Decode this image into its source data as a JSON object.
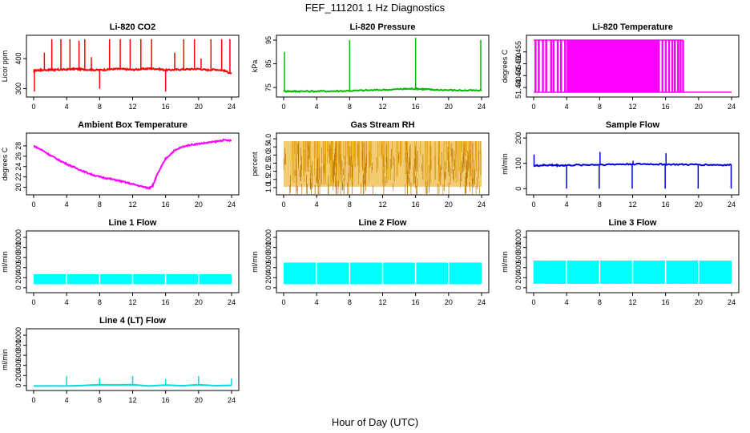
{
  "figure": {
    "title": "FEF_111201  1 Hz Diagnostics",
    "xlabel": "Hour of Day (UTC)"
  },
  "chart_data": [
    {
      "type": "line",
      "title": "Li-820 CO2",
      "ylabel": "Licor ppm",
      "color": "#ff0000",
      "xlim": [
        0,
        24
      ],
      "ylim": [
        280,
        470
      ],
      "xticks": [
        "0",
        "4",
        "8",
        "12",
        "16",
        "20",
        "24"
      ],
      "yticks": [
        300,
        400
      ],
      "series": [
        {
          "x": [
            0,
            0.3,
            1,
            2,
            2.5,
            3,
            4,
            5,
            6,
            7,
            8,
            9,
            10,
            11,
            12,
            13,
            14,
            15,
            16,
            17,
            18,
            19,
            20,
            21,
            22,
            23,
            24
          ],
          "y": [
            360,
            362,
            362,
            363,
            362,
            363,
            364,
            366,
            364,
            363,
            362,
            364,
            366,
            365,
            363,
            365,
            367,
            366,
            362,
            363,
            364,
            365,
            366,
            362,
            364,
            361,
            350
          ]
        }
      ],
      "spikes": [
        {
          "x": 0.1,
          "y": 290
        },
        {
          "x": 1.3,
          "y": 420
        },
        {
          "x": 2.2,
          "y": 465
        },
        {
          "x": 3.3,
          "y": 465
        },
        {
          "x": 4.4,
          "y": 465
        },
        {
          "x": 5.5,
          "y": 460
        },
        {
          "x": 6.2,
          "y": 465
        },
        {
          "x": 7.0,
          "y": 405
        },
        {
          "x": 8.0,
          "y": 300
        },
        {
          "x": 9.2,
          "y": 465
        },
        {
          "x": 10.5,
          "y": 465
        },
        {
          "x": 11.7,
          "y": 465
        },
        {
          "x": 13.0,
          "y": 465
        },
        {
          "x": 14.3,
          "y": 465
        },
        {
          "x": 16.0,
          "y": 290
        },
        {
          "x": 17.1,
          "y": 420
        },
        {
          "x": 18.2,
          "y": 465
        },
        {
          "x": 19.5,
          "y": 465
        },
        {
          "x": 20.3,
          "y": 400
        },
        {
          "x": 21.5,
          "y": 465
        },
        {
          "x": 22.8,
          "y": 465
        },
        {
          "x": 23.8,
          "y": 465
        }
      ]
    },
    {
      "type": "line",
      "title": "Li-820 Pressure",
      "ylabel": "kPa",
      "color": "#00bb00",
      "xlim": [
        0,
        24
      ],
      "ylim": [
        72,
        96
      ],
      "xticks": [
        "0",
        "4",
        "8",
        "12",
        "16",
        "20",
        "24"
      ],
      "yticks": [
        75,
        85,
        95
      ],
      "series": [
        {
          "x": [
            0,
            1,
            2,
            4,
            6,
            8,
            10,
            12,
            14,
            15,
            16,
            17,
            18,
            20,
            22,
            24
          ],
          "y": [
            73.5,
            73.4,
            73.4,
            73.4,
            73.5,
            73.6,
            73.8,
            74.0,
            74.3,
            74.4,
            74.5,
            74.3,
            74.1,
            73.9,
            73.8,
            73.7
          ]
        }
      ],
      "spikes": [
        {
          "x": 0.1,
          "y": 90
        },
        {
          "x": 8.0,
          "y": 95
        },
        {
          "x": 16.0,
          "y": 96
        },
        {
          "x": 23.9,
          "y": 95
        }
      ]
    },
    {
      "type": "line",
      "title": "Li-820 Temperature",
      "ylabel": "degrees C",
      "color": "#ff00ff",
      "xlim": [
        0,
        24
      ],
      "ylim": [
        51.437,
        51.461
      ],
      "xticks": [
        "0",
        "4",
        "8",
        "12",
        "16",
        "20",
        "24"
      ],
      "yticks": [
        "51.440",
        "51.445",
        "51.450",
        "51.455"
      ],
      "ytick_values": [
        51.44,
        51.445,
        51.45,
        51.455
      ],
      "toggle_low": 51.438,
      "toggle_high": 51.46,
      "solid_start": 4.2,
      "solid_end": 15.3,
      "toggle_segments_before": [
        0.1,
        0.5,
        1.0,
        1.4,
        2.0,
        2.3,
        2.8,
        3.2,
        3.7,
        4.0
      ],
      "toggle_segments_after": [
        15.5,
        15.9,
        16.3,
        16.7,
        17.0,
        17.4,
        17.7,
        18.0
      ],
      "flat_after": 18.1
    },
    {
      "type": "line",
      "title": "Ambient Box Temperature",
      "ylabel": "degrees C",
      "color": "#ff00ff",
      "xlim": [
        0,
        24
      ],
      "ylim": [
        19,
        30
      ],
      "xticks": [
        "0",
        "4",
        "8",
        "12",
        "16",
        "20",
        "24"
      ],
      "yticks": [
        20,
        22,
        24,
        26,
        28
      ],
      "series": [
        {
          "x": [
            0,
            1,
            2,
            3,
            4,
            5,
            6,
            7,
            8,
            9,
            10,
            11,
            12,
            13,
            14,
            14.5,
            15,
            16,
            17,
            18,
            19,
            20,
            21,
            22,
            23,
            24
          ],
          "y": [
            28,
            27.2,
            26.2,
            25.3,
            24.5,
            23.8,
            23.1,
            22.5,
            22.0,
            21.7,
            21.4,
            21.0,
            20.6,
            20.2,
            19.8,
            20.5,
            22.5,
            25.5,
            27,
            27.8,
            28.2,
            28.4,
            28.6,
            28.8,
            29.1,
            29.0
          ]
        }
      ]
    },
    {
      "type": "line",
      "title": "Gas Stream RH",
      "ylabel": "percent",
      "color": "#e8a000",
      "xlim": [
        0,
        24
      ],
      "ylim": [
        0.7,
        4.2
      ],
      "xticks": [
        "0",
        "4",
        "8",
        "12",
        "16",
        "20",
        "24"
      ],
      "yticks": [
        "1.0",
        "1.5",
        "2.0",
        "2.5",
        "3.0",
        "3.5",
        "4.0"
      ],
      "ytick_values": [
        1.0,
        1.5,
        2.0,
        2.5,
        3.0,
        3.5,
        4.0
      ],
      "band_top": 3.85,
      "band_bottom": 1.05
    },
    {
      "type": "line",
      "title": "Sample Flow",
      "ylabel": "ml/min",
      "color": "#0000dd",
      "xlim": [
        0,
        24
      ],
      "ylim": [
        -15,
        210
      ],
      "xticks": [
        "0",
        "4",
        "8",
        "12",
        "16",
        "20",
        "24"
      ],
      "yticks": [
        0,
        100,
        200
      ],
      "series": [
        {
          "x": [
            0,
            1,
            2,
            3,
            4,
            6,
            8,
            10,
            12,
            14,
            16,
            18,
            20,
            22,
            24
          ],
          "y": [
            90,
            92,
            93,
            92,
            92,
            94,
            95,
            96,
            97,
            97,
            96,
            95,
            95,
            94,
            93
          ]
        }
      ],
      "spikes": [
        {
          "x": 0.05,
          "y": 135
        },
        {
          "x": 4.0,
          "y": 0
        },
        {
          "x": 7.95,
          "y": 0
        },
        {
          "x": 8.05,
          "y": 145
        },
        {
          "x": 11.95,
          "y": 0
        },
        {
          "x": 12.05,
          "y": 110
        },
        {
          "x": 15.95,
          "y": 0
        },
        {
          "x": 16.05,
          "y": 140
        },
        {
          "x": 19.95,
          "y": 0
        },
        {
          "x": 23.95,
          "y": 0
        }
      ]
    },
    {
      "type": "line",
      "title": "Line 1 Flow",
      "ylabel": "ml/min",
      "color": "#00ffff",
      "xlim": [
        0,
        24
      ],
      "ylim": [
        -50,
        1080
      ],
      "xticks": [
        "0",
        "4",
        "8",
        "12",
        "16",
        "20",
        "24"
      ],
      "yticks": [
        0,
        200,
        400,
        600,
        800,
        1000
      ],
      "band_top": 270,
      "band_bottom": 70,
      "gaps": [
        4,
        8,
        12,
        16,
        20
      ]
    },
    {
      "type": "line",
      "title": "Line 2 Flow",
      "ylabel": "ml/min",
      "color": "#00ffff",
      "xlim": [
        0,
        24
      ],
      "ylim": [
        -50,
        1080
      ],
      "xticks": [
        "0",
        "4",
        "8",
        "12",
        "16",
        "20",
        "24"
      ],
      "yticks": [
        0,
        200,
        400,
        600,
        800,
        1000
      ],
      "band_top": 500,
      "band_bottom": 70,
      "gaps": [
        4,
        8,
        12,
        16,
        20
      ]
    },
    {
      "type": "line",
      "title": "Line 3 Flow",
      "ylabel": "ml/min",
      "color": "#00ffff",
      "xlim": [
        0,
        24
      ],
      "ylim": [
        -50,
        1080
      ],
      "xticks": [
        "0",
        "4",
        "8",
        "12",
        "16",
        "20",
        "24"
      ],
      "yticks": [
        0,
        200,
        400,
        600,
        800,
        1000
      ],
      "band_top": 540,
      "band_bottom": 80,
      "gaps": [
        4,
        8,
        12,
        16,
        20
      ]
    },
    {
      "type": "line",
      "title": "Line 4 (LT) Flow",
      "ylabel": "ml/min",
      "color": "#00dddd",
      "xlim": [
        0,
        24
      ],
      "ylim": [
        -50,
        1080
      ],
      "xticks": [
        "0",
        "4",
        "8",
        "12",
        "16",
        "20",
        "24"
      ],
      "yticks": [
        0,
        200,
        400,
        600,
        800,
        1000
      ],
      "series": [
        {
          "x": [
            0,
            24
          ],
          "y": [
            5,
            5
          ]
        }
      ],
      "spikes": [
        {
          "x": 4.0,
          "y": 190
        },
        {
          "x": 8.0,
          "y": 150
        },
        {
          "x": 12.0,
          "y": 190
        },
        {
          "x": 16.0,
          "y": 130
        },
        {
          "x": 20.0,
          "y": 190
        },
        {
          "x": 24.0,
          "y": 140
        }
      ]
    }
  ]
}
